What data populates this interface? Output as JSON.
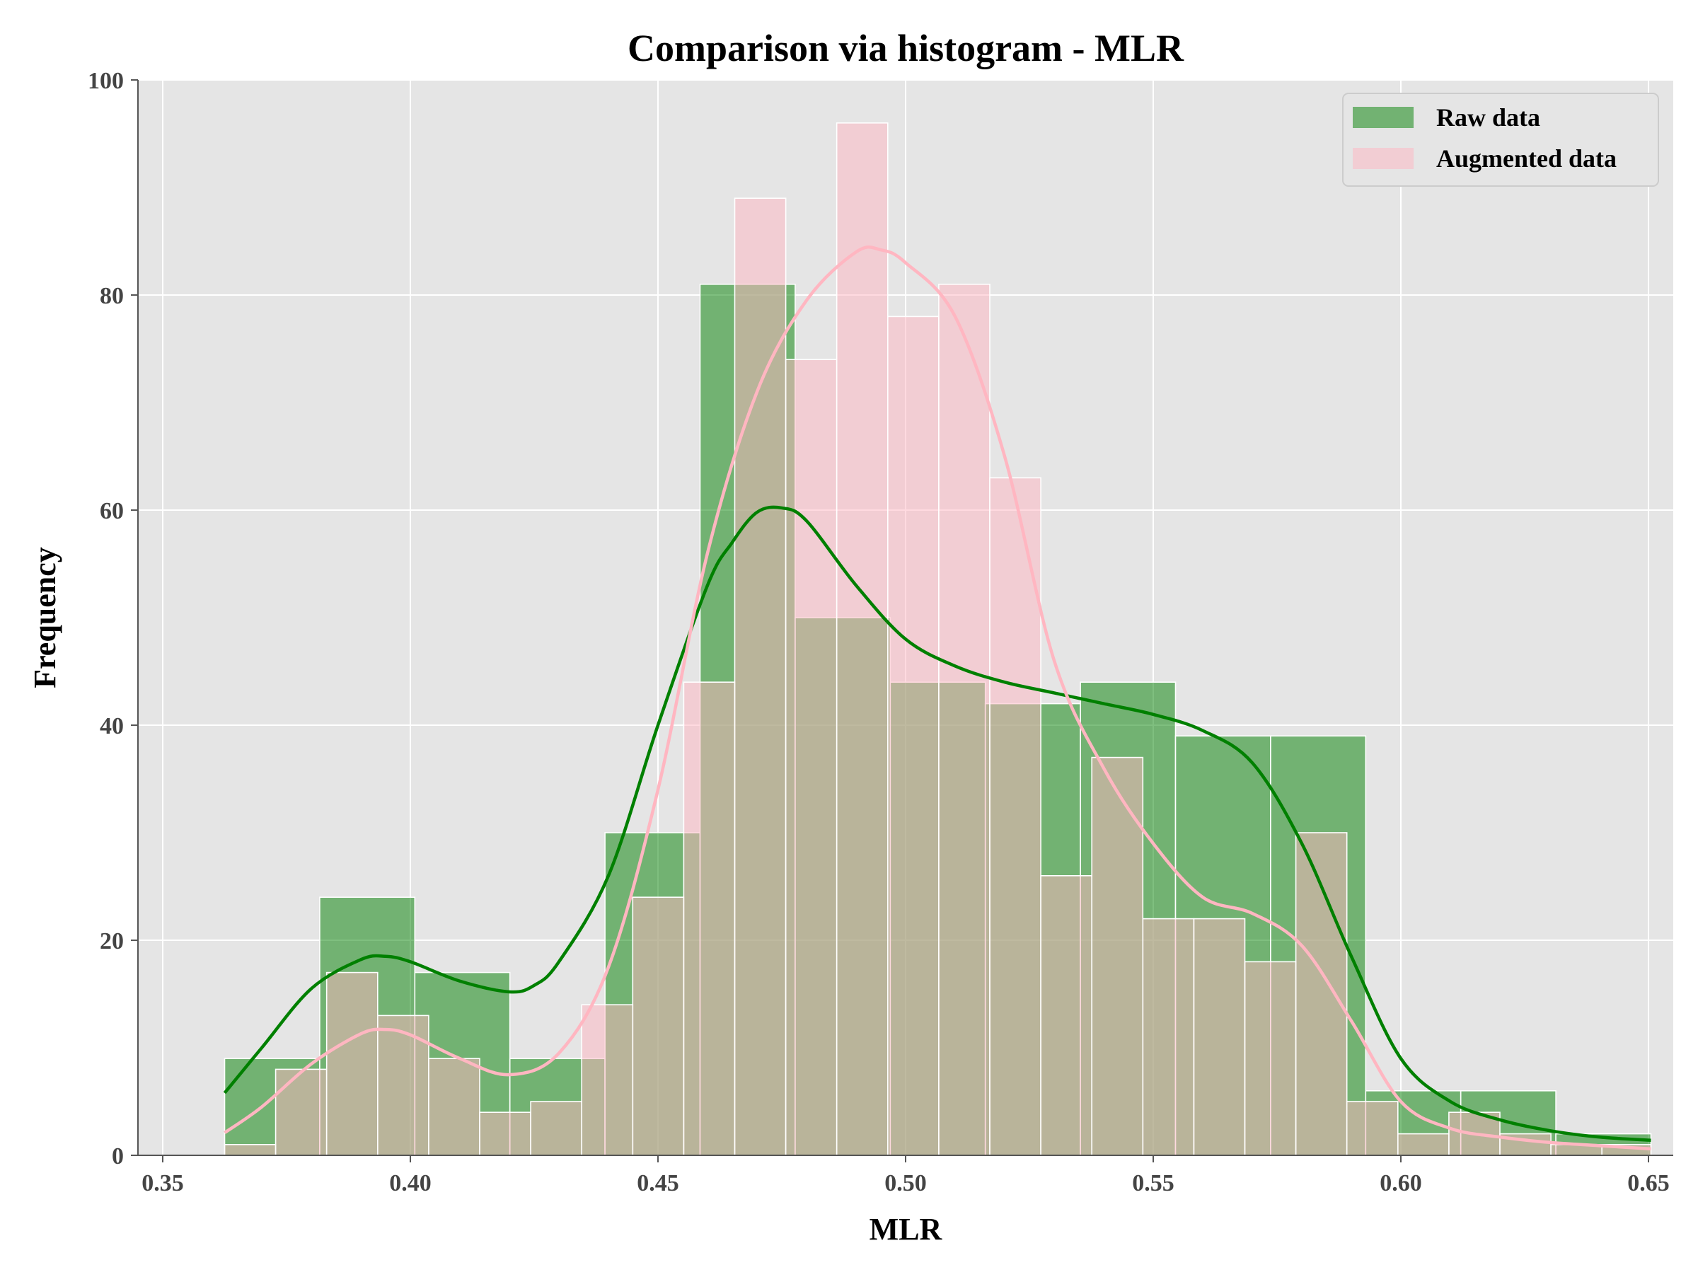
{
  "chart_data": {
    "type": "bar",
    "title": "Comparison via histogram - MLR",
    "xlabel": "MLR",
    "ylabel": "Frequency",
    "xlim": [
      0.345,
      0.655
    ],
    "ylim": [
      0,
      100
    ],
    "xticks": [
      "0.35",
      "0.40",
      "0.45",
      "0.50",
      "0.55",
      "0.60",
      "0.65"
    ],
    "yticks": [
      "0",
      "20",
      "40",
      "60",
      "80",
      "100"
    ],
    "grid": true,
    "legend_position": "top-right",
    "legend": [
      "Raw data",
      "Augmented data"
    ],
    "series": [
      {
        "name": "Raw data",
        "color": "#008000",
        "bins": [
          {
            "x0": 0.3625,
            "x1": 0.3817,
            "count": 9
          },
          {
            "x0": 0.3817,
            "x1": 0.4009,
            "count": 24
          },
          {
            "x0": 0.4009,
            "x1": 0.4201,
            "count": 17
          },
          {
            "x0": 0.4201,
            "x1": 0.4393,
            "count": 9
          },
          {
            "x0": 0.4393,
            "x1": 0.4585,
            "count": 30
          },
          {
            "x0": 0.4585,
            "x1": 0.4777,
            "count": 81
          },
          {
            "x0": 0.4777,
            "x1": 0.4969,
            "count": 50
          },
          {
            "x0": 0.4969,
            "x1": 0.5161,
            "count": 44
          },
          {
            "x0": 0.5161,
            "x1": 0.5353,
            "count": 42
          },
          {
            "x0": 0.5353,
            "x1": 0.5545,
            "count": 44
          },
          {
            "x0": 0.5545,
            "x1": 0.5737,
            "count": 39
          },
          {
            "x0": 0.5737,
            "x1": 0.5929,
            "count": 39
          },
          {
            "x0": 0.5929,
            "x1": 0.6121,
            "count": 6
          },
          {
            "x0": 0.6121,
            "x1": 0.6313,
            "count": 6
          },
          {
            "x0": 0.6313,
            "x1": 0.6505,
            "count": 2
          }
        ],
        "kde": [
          [
            0.3625,
            5.8
          ],
          [
            0.37,
            10
          ],
          [
            0.38,
            15.5
          ],
          [
            0.39,
            18.2
          ],
          [
            0.395,
            18.5
          ],
          [
            0.4,
            18.0
          ],
          [
            0.41,
            16.2
          ],
          [
            0.42,
            15.2
          ],
          [
            0.425,
            15.8
          ],
          [
            0.43,
            18
          ],
          [
            0.44,
            26
          ],
          [
            0.45,
            40
          ],
          [
            0.46,
            53
          ],
          [
            0.465,
            57
          ],
          [
            0.47,
            59.8
          ],
          [
            0.475,
            60.2
          ],
          [
            0.48,
            59
          ],
          [
            0.49,
            53
          ],
          [
            0.5,
            48
          ],
          [
            0.51,
            45.5
          ],
          [
            0.52,
            44
          ],
          [
            0.53,
            43
          ],
          [
            0.54,
            42
          ],
          [
            0.55,
            41
          ],
          [
            0.56,
            39.5
          ],
          [
            0.57,
            36.5
          ],
          [
            0.58,
            29
          ],
          [
            0.59,
            18.5
          ],
          [
            0.6,
            9
          ],
          [
            0.61,
            5
          ],
          [
            0.62,
            3.3
          ],
          [
            0.63,
            2.3
          ],
          [
            0.64,
            1.7
          ],
          [
            0.6505,
            1.4
          ]
        ]
      },
      {
        "name": "Augmented data",
        "color": "#FFB6C1",
        "bins": [
          {
            "x0": 0.3625,
            "x1": 0.3728,
            "count": 1
          },
          {
            "x0": 0.3728,
            "x1": 0.3831,
            "count": 8
          },
          {
            "x0": 0.3831,
            "x1": 0.3934,
            "count": 17
          },
          {
            "x0": 0.3934,
            "x1": 0.4037,
            "count": 13
          },
          {
            "x0": 0.4037,
            "x1": 0.414,
            "count": 9
          },
          {
            "x0": 0.414,
            "x1": 0.4243,
            "count": 4
          },
          {
            "x0": 0.4243,
            "x1": 0.4346,
            "count": 5
          },
          {
            "x0": 0.4346,
            "x1": 0.4449,
            "count": 14
          },
          {
            "x0": 0.4449,
            "x1": 0.4552,
            "count": 24
          },
          {
            "x0": 0.4552,
            "x1": 0.4655,
            "count": 44
          },
          {
            "x0": 0.4655,
            "x1": 0.4758,
            "count": 89
          },
          {
            "x0": 0.4758,
            "x1": 0.4861,
            "count": 74
          },
          {
            "x0": 0.4861,
            "x1": 0.4964,
            "count": 96
          },
          {
            "x0": 0.4964,
            "x1": 0.5067,
            "count": 78
          },
          {
            "x0": 0.5067,
            "x1": 0.517,
            "count": 81
          },
          {
            "x0": 0.517,
            "x1": 0.5273,
            "count": 63
          },
          {
            "x0": 0.5273,
            "x1": 0.5376,
            "count": 26
          },
          {
            "x0": 0.5376,
            "x1": 0.5479,
            "count": 37
          },
          {
            "x0": 0.5479,
            "x1": 0.5582,
            "count": 22
          },
          {
            "x0": 0.5582,
            "x1": 0.5685,
            "count": 22
          },
          {
            "x0": 0.5685,
            "x1": 0.5788,
            "count": 18
          },
          {
            "x0": 0.5788,
            "x1": 0.5891,
            "count": 30
          },
          {
            "x0": 0.5891,
            "x1": 0.5994,
            "count": 5
          },
          {
            "x0": 0.5994,
            "x1": 0.6097,
            "count": 2
          },
          {
            "x0": 0.6097,
            "x1": 0.62,
            "count": 4
          },
          {
            "x0": 0.62,
            "x1": 0.6303,
            "count": 2
          },
          {
            "x0": 0.6303,
            "x1": 0.6406,
            "count": 1
          },
          {
            "x0": 0.6406,
            "x1": 0.6505,
            "count": 1
          }
        ],
        "kde": [
          [
            0.3625,
            2.1
          ],
          [
            0.37,
            4.5
          ],
          [
            0.38,
            8.5
          ],
          [
            0.39,
            11.3
          ],
          [
            0.395,
            11.7
          ],
          [
            0.4,
            11.2
          ],
          [
            0.41,
            9
          ],
          [
            0.42,
            7.5
          ],
          [
            0.43,
            9.5
          ],
          [
            0.44,
            17.5
          ],
          [
            0.45,
            34
          ],
          [
            0.46,
            56
          ],
          [
            0.47,
            71
          ],
          [
            0.48,
            79.5
          ],
          [
            0.49,
            84
          ],
          [
            0.495,
            84.2
          ],
          [
            0.5,
            83
          ],
          [
            0.51,
            78
          ],
          [
            0.52,
            65
          ],
          [
            0.53,
            46
          ],
          [
            0.54,
            36
          ],
          [
            0.55,
            29
          ],
          [
            0.56,
            24
          ],
          [
            0.57,
            22.5
          ],
          [
            0.58,
            19.5
          ],
          [
            0.59,
            12.5
          ],
          [
            0.6,
            5
          ],
          [
            0.61,
            2.5
          ],
          [
            0.62,
            1.7
          ],
          [
            0.63,
            1.2
          ],
          [
            0.64,
            0.9
          ],
          [
            0.6505,
            0.6
          ]
        ]
      }
    ]
  }
}
